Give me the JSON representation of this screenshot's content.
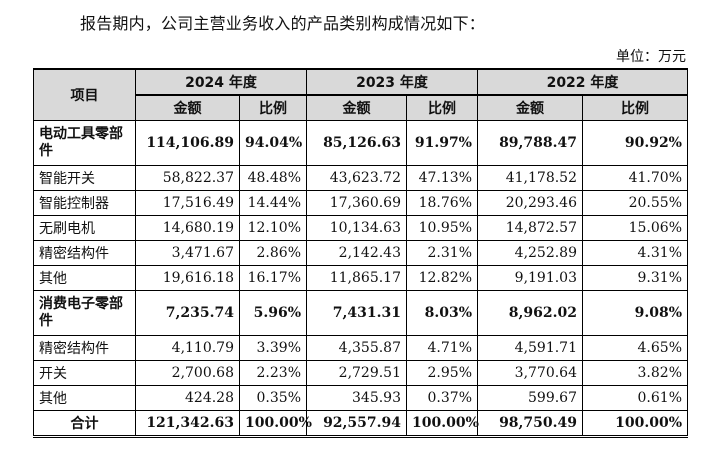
{
  "intro": "报告期内，公司主营业务收入的产品类别构成情况如下：",
  "unit": "单位：万元",
  "table": {
    "item_header": "项目",
    "years": [
      "2024 年度",
      "2023 年度",
      "2022 年度"
    ],
    "amount_label": "金额",
    "ratio_label": "比例",
    "rows": [
      {
        "label": "电动工具零部件",
        "type": "category",
        "values": [
          "114,106.89",
          "94.04%",
          "85,126.63",
          "91.97%",
          "89,788.47",
          "90.92%"
        ]
      },
      {
        "label": "智能开关",
        "type": "item",
        "values": [
          "58,822.37",
          "48.48%",
          "43,623.72",
          "47.13%",
          "41,178.52",
          "41.70%"
        ]
      },
      {
        "label": "智能控制器",
        "type": "item",
        "values": [
          "17,516.49",
          "14.44%",
          "17,360.69",
          "18.76%",
          "20,293.46",
          "20.55%"
        ]
      },
      {
        "label": "无刷电机",
        "type": "item",
        "values": [
          "14,680.19",
          "12.10%",
          "10,134.63",
          "10.95%",
          "14,872.57",
          "15.06%"
        ]
      },
      {
        "label": "精密结构件",
        "type": "item",
        "values": [
          "3,471.67",
          "2.86%",
          "2,142.43",
          "2.31%",
          "4,252.89",
          "4.31%"
        ]
      },
      {
        "label": "其他",
        "type": "item",
        "values": [
          "19,616.18",
          "16.17%",
          "11,865.17",
          "12.82%",
          "9,191.03",
          "9.31%"
        ]
      },
      {
        "label": "消费电子零部件",
        "type": "category",
        "values": [
          "7,235.74",
          "5.96%",
          "7,431.31",
          "8.03%",
          "8,962.02",
          "9.08%"
        ]
      },
      {
        "label": "精密结构件",
        "type": "item",
        "values": [
          "4,110.79",
          "3.39%",
          "4,355.87",
          "4.71%",
          "4,591.71",
          "4.65%"
        ]
      },
      {
        "label": "开关",
        "type": "item",
        "values": [
          "2,700.68",
          "2.23%",
          "2,729.51",
          "2.95%",
          "3,770.64",
          "3.82%"
        ]
      },
      {
        "label": "其他",
        "type": "item",
        "values": [
          "424.28",
          "0.35%",
          "345.93",
          "0.37%",
          "599.67",
          "0.61%"
        ]
      },
      {
        "label": "合计",
        "type": "total",
        "values": [
          "121,342.63",
          "100.00%",
          "92,557.94",
          "100.00%",
          "98,750.49",
          "100.00%"
        ]
      }
    ]
  }
}
